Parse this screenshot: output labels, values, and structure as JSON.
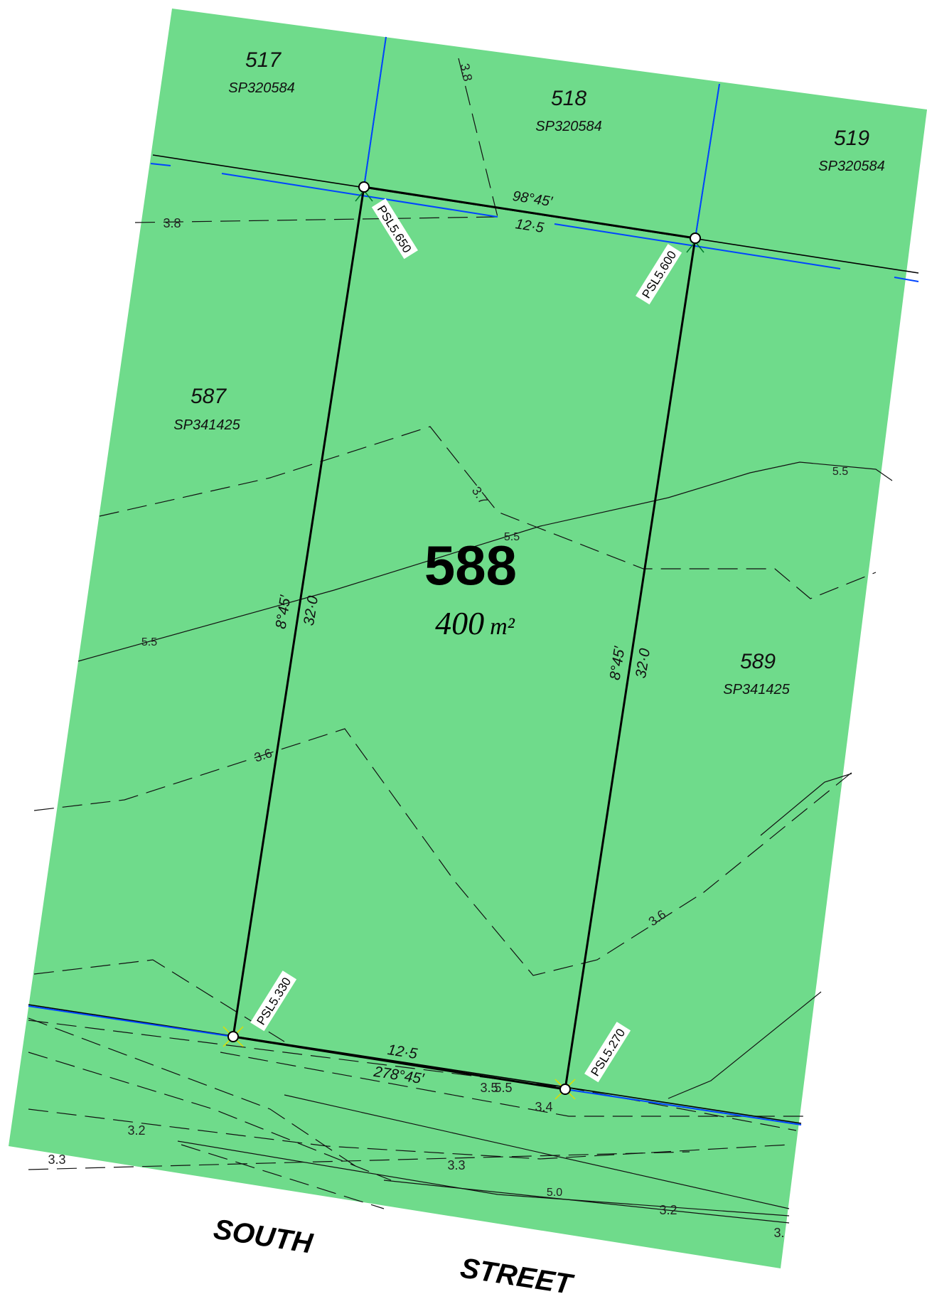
{
  "colors": {
    "land_fill": "#6fdb8b",
    "boundary": "#000000",
    "easement": "#0044ff",
    "marker_green": "#007a2a",
    "marker_yellow": "#dddd00"
  },
  "subject_lot": {
    "number": "588",
    "area": "400",
    "area_unit": "m²"
  },
  "lots": [
    {
      "number": "517",
      "plan": "SP320584"
    },
    {
      "number": "518",
      "plan": "SP320584"
    },
    {
      "number": "519",
      "plan": "SP320584"
    },
    {
      "number": "587",
      "plan": "SP341425"
    },
    {
      "number": "589",
      "plan": "SP341425"
    }
  ],
  "dimensions": {
    "rear_bearing": "98°45′",
    "rear_distance": "12·5",
    "left_bearing": "8°45′",
    "left_distance": "32·0",
    "right_bearing": "8°45′",
    "right_distance": "32·0",
    "front_distance": "12·5",
    "front_bearing": "278°45′"
  },
  "psl_markers": [
    {
      "label": "PSL5.650"
    },
    {
      "label": "PSL5.600"
    },
    {
      "label": "PSL5.330"
    },
    {
      "label": "PSL5.270"
    }
  ],
  "contours": [
    "3.8",
    "3.8",
    "3.7",
    "5.5",
    "5.5",
    "5.5",
    "3.6",
    "3.6",
    "3.5",
    "5.5",
    "3.4",
    "3.2",
    "3.3",
    "3.3",
    "5.0",
    "3.2",
    "3."
  ],
  "street": {
    "word1": "SOUTH",
    "word2": "STREET"
  }
}
